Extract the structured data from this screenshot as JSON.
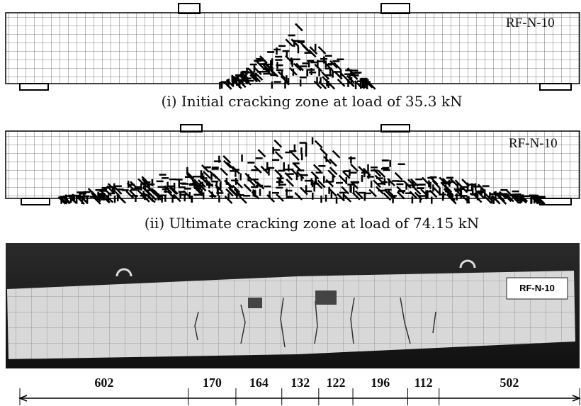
{
  "panels": [
    {
      "label": "RF-N-10",
      "caption": "(i) Initial cracking zone at load of 35.3 kN"
    },
    {
      "label": "RF-N-10",
      "caption": "(ii) Ultimate cracking zone  at load of  74.15 kN"
    }
  ],
  "photo": {
    "label": "RF-N-10"
  },
  "dimensions": [
    602,
    170,
    164,
    132,
    122,
    196,
    112,
    502
  ]
}
